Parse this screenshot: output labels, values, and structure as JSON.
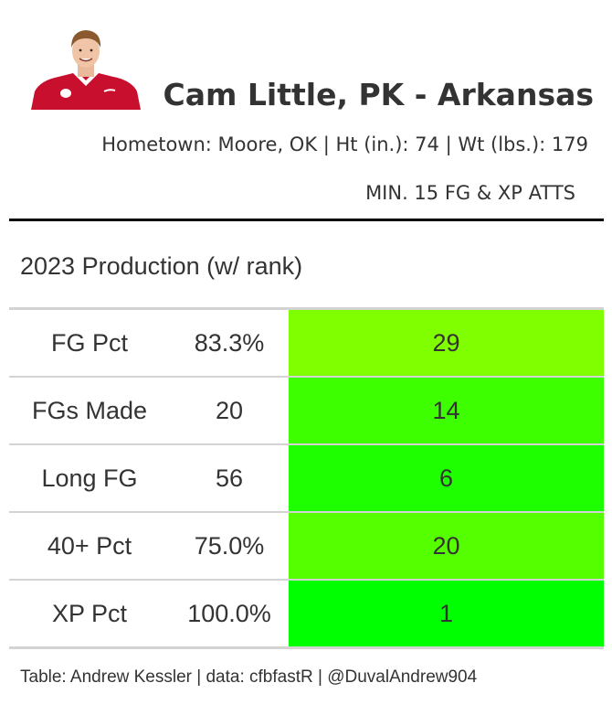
{
  "header": {
    "player_name": "Cam Little, PK - Arkansas",
    "bio": "Hometown: Moore, OK | Ht (in.): 74 | Wt (lbs.): 179",
    "qualifier": "MIN. 15 FG & XP ATTS",
    "headshot_icon": "player-headshot"
  },
  "section_title": "2023 Production (w/ rank)",
  "table": {
    "rows": [
      {
        "stat": "FG Pct",
        "value": "83.3%",
        "rank": "29",
        "rank_color": "#80ff00"
      },
      {
        "stat": "FGs Made",
        "value": "20",
        "rank": "14",
        "rank_color": "#3dff00"
      },
      {
        "stat": "Long FG",
        "value": "56",
        "rank": "6",
        "rank_color": "#1eff00"
      },
      {
        "stat": "40+ Pct",
        "value": "75.0%",
        "rank": "20",
        "rank_color": "#55ff00"
      },
      {
        "stat": "XP Pct",
        "value": "100.0%",
        "rank": "1",
        "rank_color": "#00ff00"
      }
    ]
  },
  "footer": "Table: Andrew Kessler | data: cfbfastR | @DuvalAndrew904"
}
